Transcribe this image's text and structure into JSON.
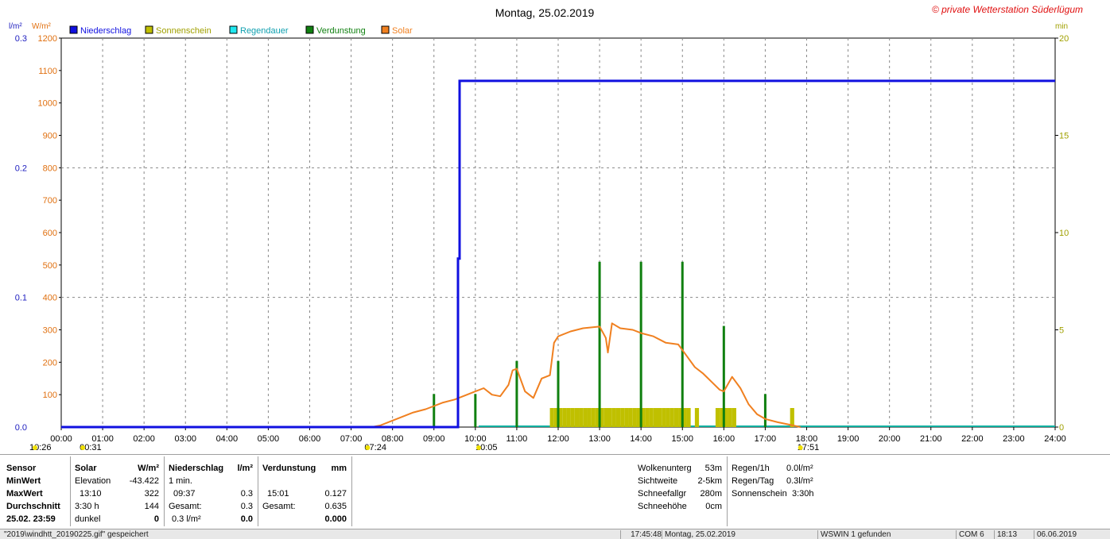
{
  "window": {
    "chart_title": "Montag, 25.02.2019",
    "copyright": "© private Wetterstation Süderlügum"
  },
  "colors": {
    "niederschlag": "#1010e0",
    "sonnenschein": "#c0c000",
    "regendauer": "#20e8f0",
    "verdunstung": "#108010",
    "solar": "#f08020",
    "baseline_teal": "#10b0a0",
    "grid": "#888888",
    "mm_axis": "#2020c0",
    "solar_axis": "#e07010",
    "min_axis": "#a0a000"
  },
  "chart_data": {
    "type": "line",
    "title": "Montag, 25.02.2019",
    "legend": [
      {
        "name": "Niederschlag",
        "color_key": "niederschlag"
      },
      {
        "name": "Sonnenschein",
        "color_key": "sonnenschein"
      },
      {
        "name": "Regendauer",
        "color_key": "regendauer"
      },
      {
        "name": "Verdunstung",
        "color_key": "verdunstung"
      },
      {
        "name": "Solar",
        "color_key": "solar"
      }
    ],
    "legend_position": "top-left",
    "grid": true,
    "x_range_hours": [
      0,
      24
    ],
    "x_ticks": [
      "00:00",
      "01:00",
      "02:00",
      "03:00",
      "04:00",
      "05:00",
      "06:00",
      "07:00",
      "08:00",
      "09:00",
      "10:00",
      "11:00",
      "12:00",
      "13:00",
      "14:00",
      "15:00",
      "16:00",
      "17:00",
      "18:00",
      "19:00",
      "20:00",
      "21:00",
      "22:00",
      "23:00",
      "24:00"
    ],
    "axes": {
      "mm": {
        "unit": "l/m²",
        "range": [
          0,
          0.3
        ],
        "ticks": [
          "0.0",
          "0.1",
          "0.2",
          "0.3"
        ]
      },
      "solar": {
        "unit": "W/m²",
        "range": [
          0,
          1200
        ],
        "ticks": [
          "1200",
          "1100",
          "1000",
          "900",
          "800",
          "700",
          "600",
          "500",
          "400",
          "300",
          "200",
          "100"
        ]
      },
      "min": {
        "unit": "min",
        "range": [
          0,
          20
        ],
        "ticks": [
          "20",
          "15",
          "10",
          "5",
          "0"
        ]
      }
    },
    "markers": [
      {
        "label": "10:26",
        "hour": 0.0
      },
      {
        "label": "00:31",
        "hour": 0.52
      },
      {
        "label": "07:24",
        "hour": 7.4
      },
      {
        "label": "10:05",
        "hour": 10.08
      },
      {
        "label": "17:51",
        "hour": 17.85
      }
    ],
    "series": [
      {
        "name": "Niederschlag",
        "axis": "mm",
        "points": [
          [
            0,
            0
          ],
          [
            9.58,
            0
          ],
          [
            9.58,
            0.13
          ],
          [
            9.62,
            0.13
          ],
          [
            9.62,
            0.267
          ],
          [
            24,
            0.267
          ]
        ]
      },
      {
        "name": "Solar",
        "axis": "solar",
        "points": [
          [
            7.5,
            0
          ],
          [
            7.7,
            5
          ],
          [
            8.0,
            20
          ],
          [
            8.3,
            35
          ],
          [
            8.5,
            45
          ],
          [
            8.8,
            55
          ],
          [
            9.0,
            65
          ],
          [
            9.2,
            75
          ],
          [
            9.5,
            85
          ],
          [
            9.8,
            100
          ],
          [
            10.0,
            110
          ],
          [
            10.2,
            120
          ],
          [
            10.4,
            100
          ],
          [
            10.6,
            95
          ],
          [
            10.8,
            130
          ],
          [
            10.9,
            175
          ],
          [
            11.0,
            180
          ],
          [
            11.2,
            110
          ],
          [
            11.4,
            90
          ],
          [
            11.6,
            150
          ],
          [
            11.8,
            160
          ],
          [
            11.9,
            260
          ],
          [
            12.0,
            280
          ],
          [
            12.3,
            295
          ],
          [
            12.6,
            305
          ],
          [
            13.0,
            310
          ],
          [
            13.15,
            275
          ],
          [
            13.2,
            230
          ],
          [
            13.3,
            320
          ],
          [
            13.5,
            305
          ],
          [
            13.8,
            300
          ],
          [
            14.0,
            290
          ],
          [
            14.3,
            280
          ],
          [
            14.6,
            260
          ],
          [
            14.9,
            255
          ],
          [
            15.1,
            220
          ],
          [
            15.3,
            185
          ],
          [
            15.5,
            165
          ],
          [
            15.7,
            140
          ],
          [
            15.9,
            115
          ],
          [
            16.0,
            110
          ],
          [
            16.2,
            155
          ],
          [
            16.4,
            120
          ],
          [
            16.6,
            70
          ],
          [
            16.8,
            40
          ],
          [
            17.0,
            25
          ],
          [
            17.3,
            15
          ],
          [
            17.6,
            7
          ],
          [
            17.85,
            0
          ]
        ]
      },
      {
        "name": "Verdunstung",
        "axis": "min",
        "bars": [
          [
            9.0,
            1.7
          ],
          [
            10.0,
            1.7
          ],
          [
            11.0,
            3.4
          ],
          [
            12.0,
            3.4
          ],
          [
            13.0,
            8.5
          ],
          [
            14.0,
            8.5
          ],
          [
            15.0,
            8.5
          ],
          [
            16.0,
            5.2
          ],
          [
            17.0,
            1.7
          ]
        ]
      },
      {
        "name": "Sonnenschein",
        "axis": "min",
        "bars": [
          [
            11.85,
            1.0
          ],
          [
            11.95,
            1.0
          ],
          [
            12.05,
            1.0
          ],
          [
            12.15,
            1.0
          ],
          [
            12.25,
            1.0
          ],
          [
            12.35,
            1.0
          ],
          [
            12.45,
            1.0
          ],
          [
            12.55,
            1.0
          ],
          [
            12.65,
            1.0
          ],
          [
            12.75,
            1.0
          ],
          [
            12.85,
            1.0
          ],
          [
            12.95,
            1.0
          ],
          [
            13.05,
            1.0
          ],
          [
            13.15,
            1.0
          ],
          [
            13.25,
            1.0
          ],
          [
            13.35,
            1.0
          ],
          [
            13.45,
            1.0
          ],
          [
            13.55,
            1.0
          ],
          [
            13.65,
            1.0
          ],
          [
            13.75,
            1.0
          ],
          [
            13.85,
            1.0
          ],
          [
            13.95,
            1.0
          ],
          [
            14.05,
            1.0
          ],
          [
            14.15,
            1.0
          ],
          [
            14.25,
            1.0
          ],
          [
            14.35,
            1.0
          ],
          [
            14.45,
            1.0
          ],
          [
            14.55,
            1.0
          ],
          [
            14.65,
            1.0
          ],
          [
            14.75,
            1.0
          ],
          [
            14.85,
            1.0
          ],
          [
            14.95,
            1.0
          ],
          [
            15.05,
            1.0
          ],
          [
            15.15,
            1.0
          ],
          [
            15.35,
            1.0
          ],
          [
            15.85,
            1.0
          ],
          [
            15.95,
            1.0
          ],
          [
            16.05,
            1.0
          ],
          [
            16.15,
            1.0
          ],
          [
            16.25,
            1.0
          ],
          [
            17.65,
            1.0
          ]
        ]
      }
    ]
  },
  "panel": {
    "sensor": {
      "header": "Sensor",
      "min": "MinWert",
      "max": "MaxWert",
      "avg": "Durchschnitt",
      "date": "25.02. 23:59"
    },
    "solar": {
      "header": "Solar",
      "unit": "W/m²",
      "r1l": "Elevation",
      "r1v": "-43.422",
      "r2l": "13:10",
      "r2v": "322",
      "r3l": "3:30 h",
      "r3v": "144",
      "r4l": "dunkel",
      "r4v": "0"
    },
    "nieder": {
      "header": "Niederschlag",
      "unit": "l/m²",
      "r1l": "1 min.",
      "r2l": "09:37",
      "r2v": "0.3",
      "r3l": "Gesamt:",
      "r3v": "0.3",
      "r4l": "0.3 l/m²",
      "r4v": "0.0"
    },
    "verdunst": {
      "header": "Verdunstung",
      "unit": "mm",
      "r2l": "15:01",
      "r2v": "0.127",
      "r3l": "Gesamt:",
      "r3v": "0.635",
      "r4v": "0.000"
    },
    "clouds": {
      "l1": "Wolkenunterg",
      "v1": "53m",
      "l2": "Sichtweite",
      "v2": "2-5km",
      "l3": "Schneefallgr",
      "v3": "280m",
      "l4": "Schneehöhe",
      "v4": "0cm"
    },
    "rain": {
      "l1": "Regen/1h",
      "v1": "0.0l/m²",
      "l2": "Regen/Tag",
      "v2": "0.3l/m²",
      "l3": "Sonnenschein",
      "v3": "3:30h"
    }
  },
  "status_bar": {
    "file": "\"2019\\windhtt_20190225.gif\" gespeichert",
    "time": "17:45:48",
    "date": "Montag, 25.02.2019",
    "device": "WSWIN 1 gefunden",
    "port": "COM 6",
    "clock": "18:13",
    "today": "06.06.2019"
  }
}
